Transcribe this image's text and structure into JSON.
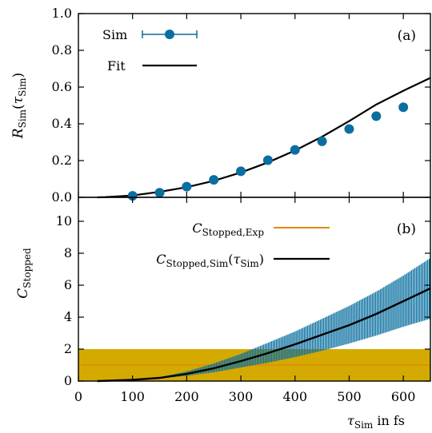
{
  "colors": {
    "sim": "#0a6fa0",
    "band": "#d4aa00",
    "exp": "#e08a00",
    "fit": "#000000"
  },
  "chart_data": [
    {
      "type": "scatter",
      "panel": "(a)",
      "ylabel": {
        "main": "R",
        "sub": "Sim",
        "arg": "τ",
        "argsub": "Sim"
      },
      "xlim": [
        0,
        650
      ],
      "ylim": [
        0,
        1.0
      ],
      "yticks": [
        "0.0",
        "0.2",
        "0.4",
        "0.6",
        "0.8",
        "1.0"
      ],
      "legend": [
        {
          "label": "Sim"
        },
        {
          "label": "Fit"
        }
      ],
      "series": [
        {
          "name": "Sim",
          "x": [
            100,
            150,
            200,
            250,
            300,
            350,
            400,
            450,
            500,
            550,
            600
          ],
          "y": [
            0.008,
            0.025,
            0.058,
            0.095,
            0.142,
            0.202,
            0.258,
            0.305,
            0.372,
            0.442,
            0.49
          ]
        },
        {
          "name": "Fit",
          "x": [
            35,
            50,
            100,
            150,
            200,
            250,
            300,
            350,
            400,
            450,
            500,
            550,
            600,
            650
          ],
          "y": [
            0,
            0.001,
            0.01,
            0.03,
            0.055,
            0.09,
            0.135,
            0.19,
            0.255,
            0.33,
            0.415,
            0.505,
            0.58,
            0.65
          ]
        }
      ]
    },
    {
      "type": "line",
      "panel": "(b)",
      "ylabel": {
        "main": "C",
        "sub": "Stopped"
      },
      "xlabel": {
        "main": "τ",
        "sub": "Sim",
        "suffix": " in fs"
      },
      "xlim": [
        0,
        650
      ],
      "ylim": [
        0,
        11.5
      ],
      "xticks": [
        "0",
        "100",
        "200",
        "300",
        "400",
        "500",
        "600"
      ],
      "yticks": [
        "0",
        "2",
        "4",
        "6",
        "8",
        "10"
      ],
      "legend": [
        {
          "main": "C",
          "sub": "Stopped,Exp"
        },
        {
          "main": "C",
          "sub": "Stopped,Sim",
          "arg": "τ",
          "argsub": "Sim"
        }
      ],
      "exp": {
        "value": 1.0,
        "low": 0.0,
        "high": 2.0
      },
      "series": [
        {
          "name": "C_Stopped,Sim",
          "x": [
            35,
            100,
            150,
            200,
            250,
            300,
            350,
            400,
            450,
            500,
            550,
            600,
            650
          ],
          "y": [
            0,
            0.08,
            0.2,
            0.45,
            0.8,
            1.25,
            1.75,
            2.3,
            2.9,
            3.5,
            4.2,
            5.0,
            5.8
          ],
          "low": [
            0,
            0.06,
            0.15,
            0.33,
            0.55,
            0.85,
            1.15,
            1.5,
            1.9,
            2.35,
            2.85,
            3.4,
            3.9
          ],
          "high": [
            0,
            0.1,
            0.25,
            0.6,
            1.1,
            1.7,
            2.4,
            3.1,
            3.9,
            4.7,
            5.6,
            6.6,
            7.7
          ]
        }
      ]
    }
  ]
}
